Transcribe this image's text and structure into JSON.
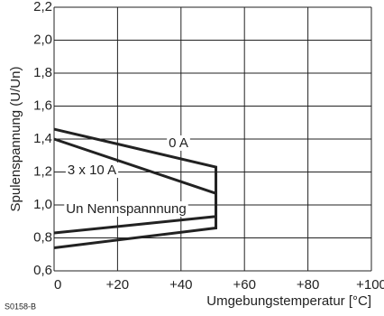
{
  "chart_data": {
    "type": "line",
    "ylabel": "Spulenspannung (U/Un)",
    "xlabel": "Umgebungstemperatur [°C]",
    "footnote": "S0158-B",
    "annotation": "Un Nennspannnung",
    "series": [
      {
        "name": "0 A",
        "color": "#222222",
        "x": [
          0,
          51,
          51,
          0
        ],
        "values": [
          1.46,
          1.23,
          0.86,
          0.74
        ]
      },
      {
        "name": "3 x 10 A",
        "color": "#222222",
        "x": [
          0,
          51,
          51,
          0
        ],
        "values": [
          1.4,
          1.07,
          0.93,
          0.83
        ]
      }
    ],
    "xlim": [
      0,
      100
    ],
    "xticks": [
      0,
      {
        "value": 20,
        "label": "+20"
      },
      {
        "value": 40,
        "label": "+40"
      },
      {
        "value": 60,
        "label": "+60"
      },
      {
        "value": 80,
        "label": "+80"
      },
      {
        "value": 100,
        "label": "+100"
      }
    ],
    "ylim": [
      0.6,
      2.2
    ],
    "yticks": [
      {
        "value": 0.6,
        "label": "0,6"
      },
      {
        "value": 0.8,
        "label": "0,8"
      },
      {
        "value": 1.0,
        "label": "1,0"
      },
      {
        "value": 1.2,
        "label": "1,2"
      },
      {
        "value": 1.4,
        "label": "1,4"
      },
      {
        "value": 1.6,
        "label": "1,6"
      },
      {
        "value": 1.8,
        "label": "1,8"
      },
      {
        "value": 2.0,
        "label": "2,0"
      },
      {
        "value": 2.2,
        "label": "2,2"
      }
    ],
    "grid": true
  }
}
